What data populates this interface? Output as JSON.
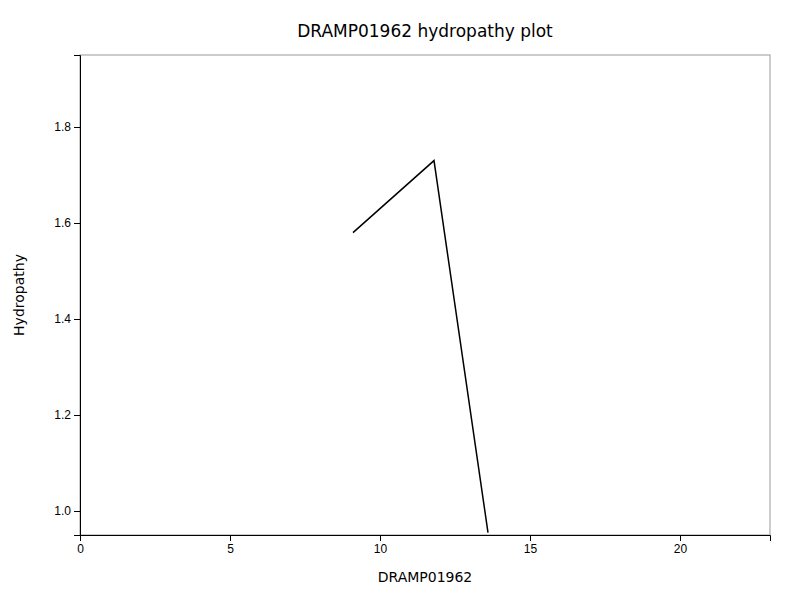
{
  "chart_data": {
    "type": "line",
    "title": "DRAMP01962 hydropathy plot",
    "x_label": "DRAMP01962",
    "y_label": "Hydropathy",
    "x": [
      9.1,
      11.8,
      13.6
    ],
    "values": [
      1.58,
      1.73,
      0.955
    ],
    "color": "#000000",
    "xlim": [
      0,
      23
    ],
    "ylim": [
      0.95,
      1.95
    ],
    "xticks": [
      0,
      5,
      10,
      15,
      20
    ],
    "yticks": [
      {
        "value": 1.0,
        "label": "1.0"
      },
      1.2,
      1.4,
      1.6,
      1.8
    ]
  }
}
